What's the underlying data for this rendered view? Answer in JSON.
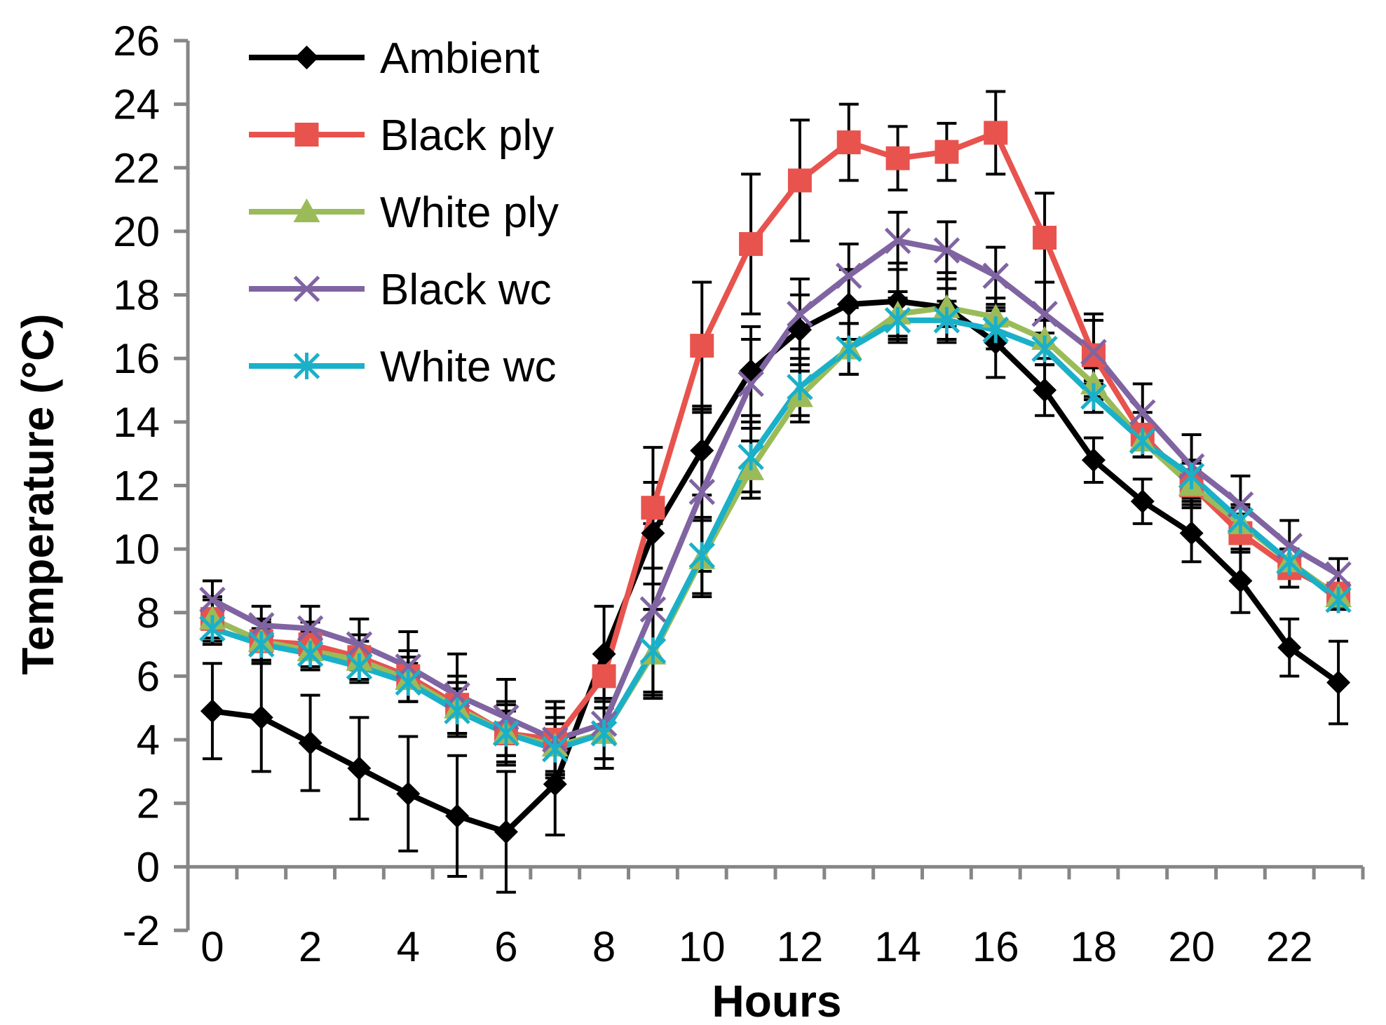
{
  "chart_data": {
    "type": "line",
    "title": "",
    "xlabel": "Hours",
    "ylabel": "Temperature (°C)",
    "xlim": [
      -0.5,
      23.5
    ],
    "ylim": [
      -2,
      26
    ],
    "x_ticks": [
      0,
      2,
      4,
      6,
      8,
      10,
      12,
      14,
      16,
      18,
      20,
      22
    ],
    "y_ticks": [
      -2,
      0,
      2,
      4,
      6,
      8,
      10,
      12,
      14,
      16,
      18,
      20,
      22,
      24,
      26
    ],
    "grid": false,
    "legend_position": "top-left",
    "x": [
      0,
      1,
      2,
      3,
      4,
      5,
      6,
      7,
      8,
      9,
      10,
      11,
      12,
      13,
      14,
      15,
      16,
      17,
      18,
      19,
      20,
      21,
      22,
      23
    ],
    "series": [
      {
        "name": "Ambient",
        "color": "#000000",
        "marker": "diamond",
        "values": [
          4.9,
          4.7,
          3.9,
          3.1,
          2.3,
          1.6,
          1.1,
          2.6,
          6.7,
          10.5,
          13.1,
          15.6,
          16.9,
          17.7,
          17.8,
          17.6,
          16.5,
          15.0,
          12.8,
          11.5,
          10.5,
          9.0,
          6.9,
          5.8
        ],
        "error": [
          1.5,
          1.7,
          1.5,
          1.6,
          1.8,
          1.9,
          1.9,
          1.6,
          1.5,
          1.6,
          1.4,
          1.4,
          1.1,
          1.1,
          1.2,
          1.1,
          1.1,
          0.8,
          0.7,
          0.7,
          0.9,
          1.0,
          0.9,
          1.3
        ]
      },
      {
        "name": "Black ply",
        "color": "#e8534e",
        "marker": "square",
        "values": [
          7.8,
          7.1,
          7.0,
          6.6,
          6.0,
          5.1,
          4.2,
          4.0,
          6.0,
          11.3,
          16.4,
          19.6,
          21.6,
          22.8,
          22.3,
          22.5,
          23.1,
          19.8,
          16.1,
          13.6,
          12.0,
          10.5,
          9.4,
          8.6
        ],
        "error": [
          0.7,
          0.7,
          0.7,
          0.7,
          0.8,
          0.9,
          1.0,
          1.0,
          0.7,
          1.9,
          2.0,
          2.2,
          1.9,
          1.2,
          1.0,
          0.9,
          1.3,
          1.4,
          1.3,
          0.7,
          0.7,
          0.6,
          0.6,
          0.3
        ]
      },
      {
        "name": "White ply",
        "color": "#9bbb59",
        "marker": "triangle",
        "values": [
          7.8,
          7.1,
          6.8,
          6.5,
          5.9,
          5.0,
          4.2,
          3.8,
          4.2,
          6.7,
          9.7,
          12.5,
          14.8,
          16.3,
          17.4,
          17.6,
          17.3,
          16.6,
          15.2,
          13.4,
          12.0,
          10.8,
          9.6,
          8.5
        ],
        "error": [
          0.6,
          0.6,
          0.6,
          0.6,
          0.7,
          0.8,
          0.9,
          0.9,
          0.8,
          1.4,
          1.2,
          0.9,
          0.8,
          0.8,
          0.7,
          0.6,
          0.6,
          0.6,
          0.5,
          0.5,
          0.5,
          0.5,
          0.4,
          0.3
        ]
      },
      {
        "name": "Black wc",
        "color": "#8064a2",
        "marker": "x",
        "values": [
          8.4,
          7.6,
          7.5,
          7.0,
          6.3,
          5.4,
          4.7,
          4.0,
          4.5,
          8.1,
          11.8,
          15.2,
          17.4,
          18.6,
          19.7,
          19.4,
          18.6,
          17.4,
          16.2,
          14.3,
          12.6,
          11.4,
          10.1,
          9.2
        ],
        "error": [
          0.6,
          0.6,
          0.7,
          0.8,
          1.1,
          1.3,
          1.2,
          1.2,
          1.4,
          2.7,
          2.5,
          1.4,
          1.1,
          1.0,
          0.9,
          0.9,
          0.9,
          1.0,
          1.0,
          0.9,
          1.0,
          0.9,
          0.8,
          0.5
        ]
      },
      {
        "name": "White wc",
        "color": "#1ab0c8",
        "marker": "asterisk",
        "values": [
          7.5,
          7.0,
          6.7,
          6.3,
          5.8,
          4.9,
          4.2,
          3.7,
          4.2,
          6.8,
          9.8,
          12.9,
          15.1,
          16.3,
          17.2,
          17.2,
          16.9,
          16.3,
          14.8,
          13.4,
          12.3,
          10.9,
          9.6,
          8.4
        ],
        "error": [
          0.5,
          0.5,
          0.5,
          0.5,
          0.6,
          0.7,
          0.7,
          0.8,
          0.8,
          1.3,
          1.2,
          1.1,
          0.9,
          0.8,
          0.7,
          0.6,
          0.6,
          0.5,
          0.5,
          0.5,
          0.5,
          0.5,
          0.4,
          0.3
        ]
      }
    ]
  }
}
